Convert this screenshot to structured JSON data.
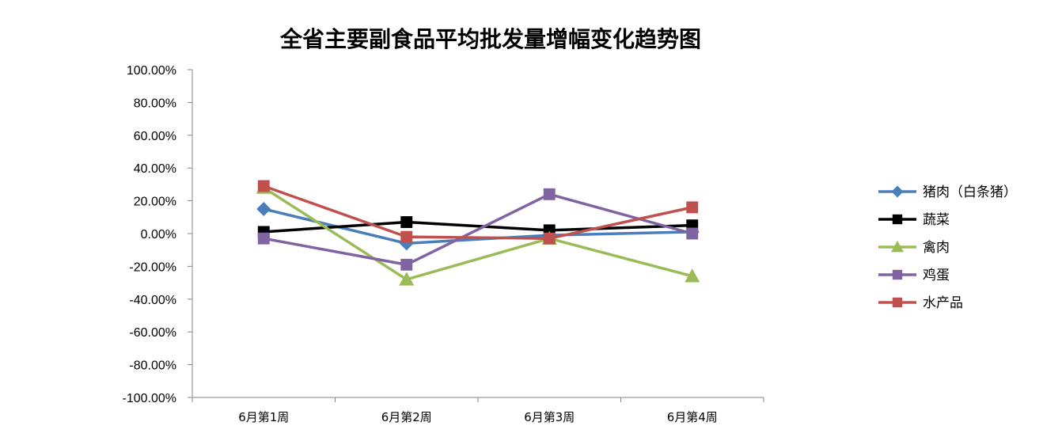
{
  "chart_data": {
    "type": "line",
    "title": "全省主要副食品平均批发量增幅变化趋势图",
    "categories": [
      "6月第1周",
      "6月第2周",
      "6月第3周",
      "6月第4周"
    ],
    "ylim": [
      -1.0,
      1.0
    ],
    "yticks": [
      "100.00%",
      "80.00%",
      "60.00%",
      "40.00%",
      "20.00%",
      "0.00%",
      "-20.00%",
      "-40.00%",
      "-60.00%",
      "-80.00%",
      "-100.00%"
    ],
    "grid": false,
    "legend_position": "right",
    "series": [
      {
        "name": "猪肉（白条猪）",
        "color": "#4A7EBB",
        "marker": "diamond",
        "values": [
          0.15,
          -0.06,
          -0.01,
          0.01
        ]
      },
      {
        "name": "蔬菜",
        "color": "#000000",
        "marker": "square",
        "values": [
          0.01,
          0.07,
          0.02,
          0.05
        ]
      },
      {
        "name": "禽肉",
        "color": "#9BBB59",
        "marker": "triangle",
        "values": [
          0.28,
          -0.28,
          -0.03,
          -0.26
        ]
      },
      {
        "name": "鸡蛋",
        "color": "#8064A2",
        "marker": "square",
        "values": [
          -0.03,
          -0.19,
          0.24,
          0.0
        ]
      },
      {
        "name": "水产品",
        "color": "#C0504D",
        "marker": "square",
        "values": [
          0.29,
          -0.02,
          -0.03,
          0.16
        ]
      }
    ]
  }
}
